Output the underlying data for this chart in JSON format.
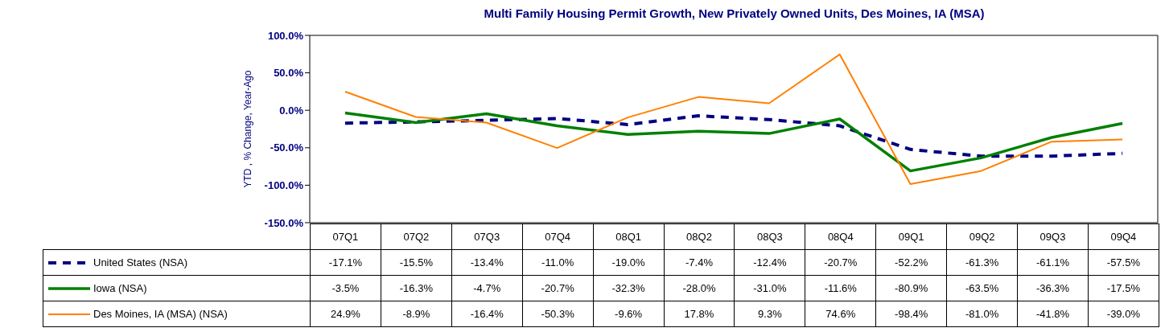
{
  "chart_data": {
    "type": "line",
    "title": "Multi Family Housing Permit Growth, New Privately Owned Units, Des Moines, IA (MSA)",
    "ylabel": "YTD , % Change, Year-Ago",
    "categories": [
      "07Q1",
      "07Q2",
      "07Q3",
      "07Q4",
      "08Q1",
      "08Q2",
      "08Q3",
      "08Q4",
      "09Q1",
      "09Q2",
      "09Q3",
      "09Q4"
    ],
    "ylim": [
      -150,
      100
    ],
    "yticks": [
      {
        "value": 100,
        "label": "100.0%"
      },
      {
        "value": 50,
        "label": "50.0%"
      },
      {
        "value": 0,
        "label": "0.0%"
      },
      {
        "value": -50,
        "label": "-50.0%"
      },
      {
        "value": -100,
        "label": "-100.0%"
      },
      {
        "value": -150,
        "label": "-150.0%"
      }
    ],
    "grid": false,
    "legend": "bottom",
    "marker": "none",
    "series": [
      {
        "name": "United States (NSA)",
        "color": "#000080",
        "line_style": "dashed",
        "values": [
          -17.1,
          -15.5,
          -13.4,
          -11.0,
          -19.0,
          -7.4,
          -12.4,
          -20.7,
          -52.2,
          -61.3,
          -61.1,
          -57.5
        ],
        "value_labels": [
          "-17.1%",
          "-15.5%",
          "-13.4%",
          "-11.0%",
          "-19.0%",
          "-7.4%",
          "-12.4%",
          "-20.7%",
          "-52.2%",
          "-61.3%",
          "-61.1%",
          "-57.5%"
        ]
      },
      {
        "name": "Iowa (NSA)",
        "color": "#008000",
        "line_style": "solid",
        "values": [
          -3.5,
          -16.3,
          -4.7,
          -20.7,
          -32.3,
          -28.0,
          -31.0,
          -11.6,
          -80.9,
          -63.5,
          -36.3,
          -17.5
        ],
        "value_labels": [
          "-3.5%",
          "-16.3%",
          "-4.7%",
          "-20.7%",
          "-32.3%",
          "-28.0%",
          "-31.0%",
          "-11.6%",
          "-80.9%",
          "-63.5%",
          "-36.3%",
          "-17.5%"
        ]
      },
      {
        "name": "Des Moines, IA (MSA) (NSA)",
        "color": "#ff8000",
        "line_style": "solid",
        "values": [
          24.9,
          -8.9,
          -16.4,
          -50.3,
          -9.6,
          17.8,
          9.3,
          74.6,
          -98.4,
          -81.0,
          -41.8,
          -39.0
        ],
        "value_labels": [
          "24.9%",
          "-8.9%",
          "-16.4%",
          "-50.3%",
          "-9.6%",
          "17.8%",
          "9.3%",
          "74.6%",
          "-98.4%",
          "-81.0%",
          "-41.8%",
          "-39.0%"
        ]
      }
    ]
  }
}
